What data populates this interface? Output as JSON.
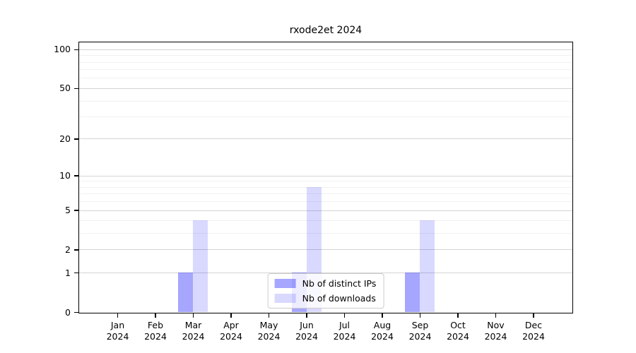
{
  "figure": {
    "title": "rxode2et 2024"
  },
  "chart_data": {
    "type": "bar",
    "title": "rxode2et 2024",
    "categories": [
      "Jan",
      "Feb",
      "Mar",
      "Apr",
      "May",
      "Jun",
      "Jul",
      "Aug",
      "Sep",
      "Oct",
      "Nov",
      "Dec"
    ],
    "category_year": "2024",
    "series": [
      {
        "name": "Nb of distinct IPs",
        "color": "#0000ff",
        "alpha": 0.35,
        "values": [
          0,
          0,
          1,
          0,
          0,
          1,
          0,
          0,
          1,
          0,
          0,
          0
        ]
      },
      {
        "name": "Nb of downloads",
        "color": "#0000ff",
        "alpha": 0.15,
        "values": [
          0,
          0,
          4,
          0,
          0,
          8,
          0,
          0,
          4,
          0,
          0,
          0
        ]
      }
    ],
    "yscale": "log1p",
    "ylim": [
      0,
      113
    ],
    "y_ticks": [
      0,
      1,
      2,
      5,
      10,
      20,
      50,
      100
    ],
    "y_minor_gridlines": [
      3,
      4,
      6,
      7,
      8,
      9,
      30,
      40,
      60,
      70,
      80,
      90
    ],
    "grid": true,
    "legend_position": "lower center",
    "xlabel": "",
    "ylabel": ""
  }
}
